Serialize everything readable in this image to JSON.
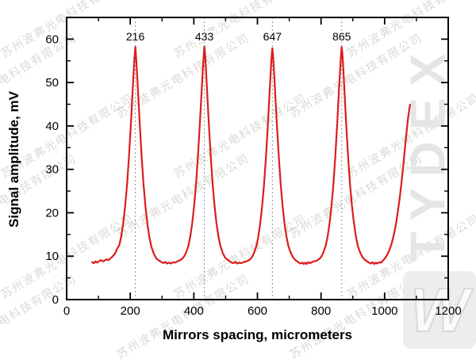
{
  "watermark": {
    "company_text": "苏州波弗光电科技有限公司",
    "brand_text": "TYDEX",
    "logo_glyph": "W"
  },
  "chart_data": {
    "type": "line",
    "title": "",
    "xlabel": "Mirrors spacing, micrometers",
    "ylabel": "Signal amplitude, mV",
    "xlim": [
      0,
      1200
    ],
    "ylim": [
      0,
      65
    ],
    "x_major_ticks": [
      0,
      200,
      400,
      600,
      800,
      1000,
      1200
    ],
    "x_minor_ticks": [
      100,
      300,
      500,
      700,
      900,
      1100
    ],
    "y_major_ticks": [
      0,
      10,
      20,
      30,
      40,
      50,
      60
    ],
    "y_minor_ticks": [
      5,
      15,
      25,
      35,
      45,
      55
    ],
    "grid": false,
    "legend": "none",
    "frame_color": "#000000",
    "dashed_line_color": "#8f8f8f",
    "peak_markers": [
      {
        "x": 216,
        "label": "216"
      },
      {
        "x": 433,
        "label": "433"
      },
      {
        "x": 647,
        "label": "647"
      },
      {
        "x": 865,
        "label": "865"
      }
    ],
    "series": [
      {
        "name": "signal",
        "color": "#dd1c1c",
        "points": [
          [
            80,
            8.6
          ],
          [
            86,
            8.4
          ],
          [
            91,
            8.8
          ],
          [
            96,
            8.5
          ],
          [
            102,
            8.9
          ],
          [
            108,
            9.1
          ],
          [
            114,
            8.8
          ],
          [
            120,
            9.0
          ],
          [
            126,
            9.3
          ],
          [
            132,
            9.1
          ],
          [
            138,
            9.5
          ],
          [
            144,
            9.9
          ],
          [
            150,
            10.4
          ],
          [
            155,
            11.0
          ],
          [
            158,
            11.6
          ],
          [
            166,
            12.6
          ],
          [
            172,
            14.6
          ],
          [
            178,
            17.6
          ],
          [
            184,
            21.6
          ],
          [
            190,
            26.6
          ],
          [
            196,
            33.0
          ],
          [
            202,
            40.5
          ],
          [
            207,
            47.5
          ],
          [
            211,
            52.8
          ],
          [
            213,
            55.5
          ],
          [
            215,
            57.4
          ],
          [
            216,
            58.2
          ],
          [
            217,
            57.3
          ],
          [
            219,
            55.0
          ],
          [
            221,
            52.6
          ],
          [
            225,
            47.3
          ],
          [
            230,
            40.3
          ],
          [
            236,
            32.8
          ],
          [
            242,
            26.4
          ],
          [
            248,
            21.4
          ],
          [
            254,
            17.4
          ],
          [
            260,
            14.5
          ],
          [
            266,
            12.3
          ],
          [
            274,
            10.6
          ],
          [
            282,
            9.5
          ],
          [
            292,
            8.9
          ],
          [
            298,
            8.7
          ],
          [
            304,
            8.4
          ],
          [
            310,
            8.7
          ],
          [
            316,
            8.3
          ],
          [
            322,
            8.5
          ],
          [
            328,
            8.3
          ],
          [
            334,
            8.6
          ],
          [
            340,
            8.5
          ],
          [
            345,
            8.7
          ],
          [
            351,
            8.9
          ],
          [
            357,
            9.1
          ],
          [
            363,
            9.4
          ],
          [
            369,
            9.9
          ],
          [
            375,
            10.7
          ],
          [
            383,
            12.4
          ],
          [
            389,
            14.6
          ],
          [
            395,
            17.6
          ],
          [
            401,
            21.6
          ],
          [
            407,
            26.6
          ],
          [
            413,
            33.0
          ],
          [
            419,
            40.5
          ],
          [
            424,
            47.5
          ],
          [
            428,
            52.8
          ],
          [
            430,
            55.2
          ],
          [
            432,
            57.3
          ],
          [
            433,
            58.3
          ],
          [
            435,
            56.8
          ],
          [
            438,
            53.2
          ],
          [
            442,
            47.6
          ],
          [
            447,
            40.6
          ],
          [
            453,
            33.1
          ],
          [
            459,
            26.7
          ],
          [
            465,
            21.7
          ],
          [
            471,
            17.7
          ],
          [
            477,
            14.7
          ],
          [
            483,
            12.5
          ],
          [
            491,
            10.7
          ],
          [
            499,
            9.6
          ],
          [
            509,
            9.0
          ],
          [
            517,
            8.6
          ],
          [
            525,
            8.4
          ],
          [
            531,
            8.7
          ],
          [
            537,
            8.3
          ],
          [
            543,
            8.5
          ],
          [
            549,
            8.4
          ],
          [
            559,
            8.7
          ],
          [
            565,
            8.8
          ],
          [
            571,
            9.0
          ],
          [
            577,
            9.3
          ],
          [
            583,
            9.8
          ],
          [
            589,
            10.7
          ],
          [
            597,
            12.4
          ],
          [
            603,
            14.6
          ],
          [
            609,
            17.7
          ],
          [
            615,
            21.7
          ],
          [
            621,
            26.7
          ],
          [
            627,
            33.0
          ],
          [
            633,
            40.4
          ],
          [
            638,
            47.4
          ],
          [
            642,
            52.7
          ],
          [
            644,
            55.3
          ],
          [
            646,
            57.2
          ],
          [
            647,
            57.9
          ],
          [
            649,
            56.5
          ],
          [
            652,
            53.0
          ],
          [
            656,
            47.4
          ],
          [
            661,
            40.4
          ],
          [
            667,
            33.0
          ],
          [
            673,
            26.6
          ],
          [
            679,
            21.6
          ],
          [
            685,
            17.6
          ],
          [
            691,
            14.6
          ],
          [
            697,
            12.4
          ],
          [
            705,
            10.7
          ],
          [
            713,
            9.6
          ],
          [
            721,
            9.0
          ],
          [
            729,
            8.6
          ],
          [
            735,
            8.3
          ],
          [
            741,
            8.5
          ],
          [
            746,
            8.2
          ],
          [
            751,
            8.5
          ],
          [
            755,
            8.2
          ],
          [
            760,
            8.6
          ],
          [
            766,
            8.4
          ],
          [
            771,
            8.6
          ],
          [
            777,
            8.8
          ],
          [
            783,
            8.9
          ],
          [
            789,
            9.1
          ],
          [
            795,
            9.4
          ],
          [
            801,
            9.9
          ],
          [
            807,
            10.8
          ],
          [
            815,
            12.5
          ],
          [
            821,
            14.7
          ],
          [
            827,
            17.7
          ],
          [
            833,
            21.7
          ],
          [
            839,
            26.7
          ],
          [
            845,
            33.1
          ],
          [
            851,
            40.6
          ],
          [
            856,
            47.6
          ],
          [
            860,
            52.9
          ],
          [
            862,
            55.4
          ],
          [
            864,
            57.4
          ],
          [
            865,
            58.2
          ],
          [
            867,
            56.9
          ],
          [
            870,
            53.3
          ],
          [
            874,
            47.7
          ],
          [
            879,
            40.7
          ],
          [
            885,
            33.2
          ],
          [
            891,
            26.8
          ],
          [
            897,
            21.8
          ],
          [
            903,
            17.8
          ],
          [
            909,
            14.8
          ],
          [
            915,
            12.5
          ],
          [
            923,
            10.8
          ],
          [
            931,
            9.7
          ],
          [
            939,
            9.1
          ],
          [
            945,
            8.8
          ],
          [
            951,
            8.5
          ],
          [
            957,
            8.3
          ],
          [
            962,
            8.6
          ],
          [
            967,
            8.2
          ],
          [
            972,
            8.5
          ],
          [
            977,
            8.3
          ],
          [
            983,
            8.6
          ],
          [
            989,
            8.5
          ],
          [
            995,
            9.0
          ],
          [
            1001,
            9.5
          ],
          [
            1008,
            10.3
          ],
          [
            1015,
            11.4
          ],
          [
            1022,
            12.9
          ],
          [
            1029,
            15.0
          ],
          [
            1036,
            17.6
          ],
          [
            1042,
            20.5
          ],
          [
            1048,
            23.8
          ],
          [
            1054,
            27.6
          ],
          [
            1059,
            31.2
          ],
          [
            1064,
            35.0
          ],
          [
            1069,
            38.6
          ],
          [
            1073,
            41.4
          ],
          [
            1077,
            43.6
          ],
          [
            1080,
            44.9
          ]
        ]
      }
    ]
  }
}
